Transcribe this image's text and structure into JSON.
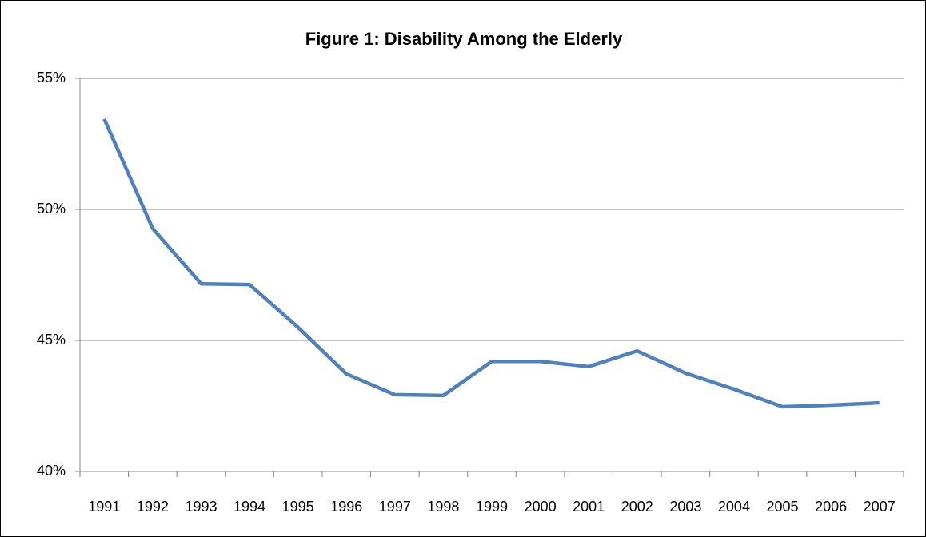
{
  "chart_data": {
    "type": "line",
    "title": "Figure 1: Disability Among the Elderly",
    "categories": [
      "1991",
      "1992",
      "1993",
      "1994",
      "1995",
      "1996",
      "1997",
      "1998",
      "1999",
      "2000",
      "2001",
      "2002",
      "2003",
      "2004",
      "2005",
      "2006",
      "2007"
    ],
    "series": [
      {
        "color": "#4f81bd",
        "values": [
          53.45,
          49.27,
          47.16,
          47.13,
          45.5,
          43.72,
          42.93,
          42.9,
          44.2,
          44.2,
          44.0,
          44.6,
          43.75,
          43.14,
          42.47,
          42.53,
          42.62
        ]
      }
    ],
    "ylim": [
      40,
      55
    ],
    "yticks": [
      {
        "value": 40,
        "label": "40%"
      },
      {
        "value": 45,
        "label": "45%"
      },
      {
        "value": 50,
        "label": "50%"
      },
      {
        "value": 55,
        "label": "55%"
      }
    ],
    "grid": true
  }
}
